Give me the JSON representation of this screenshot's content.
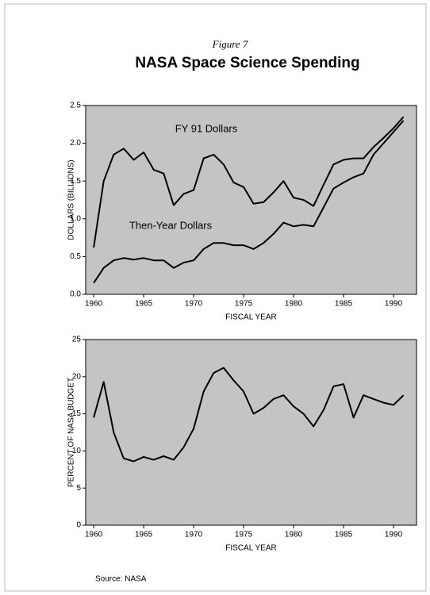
{
  "figure": "Figure 7",
  "title": "NASA Space Science Spending",
  "source": "Source: NASA",
  "chart_data": [
    {
      "type": "line",
      "xlabel": "FISCAL YEAR",
      "ylabel": "DOLLARS (BILLIONS)",
      "annotations": [
        "FY 91 Dollars",
        "Then-Year Dollars"
      ],
      "x": [
        1960,
        1961,
        1962,
        1963,
        1964,
        1965,
        1966,
        1967,
        1968,
        1969,
        1970,
        1971,
        1972,
        1973,
        1974,
        1975,
        1976,
        1977,
        1978,
        1979,
        1980,
        1981,
        1982,
        1983,
        1984,
        1985,
        1986,
        1987,
        1988,
        1989,
        1990,
        1991
      ],
      "series": [
        {
          "name": "FY 91 Dollars",
          "color": "#000000",
          "values": [
            0.62,
            1.5,
            1.85,
            1.93,
            1.78,
            1.88,
            1.65,
            1.6,
            1.18,
            1.33,
            1.38,
            1.8,
            1.85,
            1.72,
            1.48,
            1.42,
            1.2,
            1.22,
            1.35,
            1.5,
            1.28,
            1.25,
            1.17,
            1.45,
            1.72,
            1.78,
            1.8,
            1.8,
            1.95,
            2.07,
            2.2,
            2.35
          ]
        },
        {
          "name": "Then-Year Dollars",
          "color": "#000000",
          "values": [
            0.15,
            0.35,
            0.45,
            0.48,
            0.46,
            0.48,
            0.45,
            0.45,
            0.35,
            0.42,
            0.45,
            0.6,
            0.68,
            0.68,
            0.65,
            0.65,
            0.6,
            0.68,
            0.8,
            0.95,
            0.9,
            0.92,
            0.9,
            1.15,
            1.4,
            1.48,
            1.55,
            1.6,
            1.85,
            2.0,
            2.15,
            2.3
          ]
        }
      ],
      "xlim": [
        1959.2,
        1992.3
      ],
      "xticks": [
        1960,
        1965,
        1970,
        1975,
        1980,
        1985,
        1990
      ],
      "ylim": [
        0,
        2.5
      ],
      "yticks": [
        {
          "value": 0,
          "label": "0.0"
        },
        0.5,
        {
          "value": 1,
          "label": "1.0"
        },
        1.5,
        {
          "value": 2,
          "label": "2.0"
        },
        2.5
      ],
      "background": "#c4c4c4"
    },
    {
      "type": "line",
      "xlabel": "FISCAL YEAR",
      "ylabel": "PERCENT OF NASA BUDGET",
      "x": [
        1960,
        1961,
        1962,
        1963,
        1964,
        1965,
        1966,
        1967,
        1968,
        1969,
        1970,
        1971,
        1972,
        1973,
        1974,
        1975,
        1976,
        1977,
        1978,
        1979,
        1980,
        1981,
        1982,
        1983,
        1984,
        1985,
        1986,
        1987,
        1988,
        1989,
        1990,
        1991
      ],
      "series": [
        {
          "name": "Percent of NASA Budget",
          "color": "#000000",
          "values": [
            14.5,
            19.3,
            12.5,
            9,
            8.6,
            9.2,
            8.8,
            9.3,
            8.8,
            10.5,
            13,
            18,
            20.5,
            21.2,
            19.5,
            18,
            15,
            15.8,
            17,
            17.5,
            16,
            15,
            13.3,
            15.5,
            18.7,
            19,
            14.5,
            17.5,
            17,
            16.5,
            16.2,
            17.5
          ]
        }
      ],
      "xlim": [
        1959.2,
        1992.3
      ],
      "xticks": [
        1960,
        1965,
        1970,
        1975,
        1980,
        1985,
        1990
      ],
      "ylim": [
        0,
        25
      ],
      "yticks": [
        0,
        5,
        10,
        15,
        20,
        25
      ],
      "background": "#c4c4c4"
    }
  ]
}
